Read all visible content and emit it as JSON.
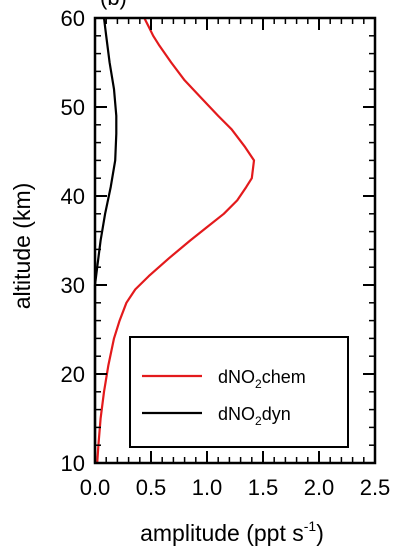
{
  "chart_data": {
    "type": "line",
    "title": "",
    "title_fragment": "(b)",
    "xlabel": "amplitude (ppt s",
    "xlabel_sup": "-1",
    "xlabel_close": ")",
    "ylabel": "altitude (km)",
    "xlim": [
      0.0,
      2.5
    ],
    "ylim": [
      10,
      60
    ],
    "x_ticks": [
      "0.0",
      "0.5",
      "1.0",
      "1.5",
      "2.0",
      "2.5"
    ],
    "x_tick_values": [
      0.0,
      0.5,
      1.0,
      1.5,
      2.0,
      2.5
    ],
    "y_ticks": [
      "10",
      "20",
      "30",
      "40",
      "50",
      "60"
    ],
    "y_tick_values": [
      10,
      20,
      30,
      40,
      50,
      60
    ],
    "grid": false,
    "legend_position": "bottom-right",
    "series": [
      {
        "name": "dNO2chem",
        "legend_base": "dNO",
        "legend_sub": "2",
        "legend_suffix": "chem",
        "color": "#e31a1c",
        "points": [
          [
            0.02,
            10
          ],
          [
            0.03,
            12
          ],
          [
            0.05,
            15
          ],
          [
            0.08,
            18
          ],
          [
            0.12,
            21
          ],
          [
            0.17,
            24
          ],
          [
            0.22,
            26
          ],
          [
            0.28,
            28
          ],
          [
            0.36,
            29.5
          ],
          [
            0.48,
            31
          ],
          [
            0.66,
            33
          ],
          [
            0.85,
            35
          ],
          [
            1.0,
            36.5
          ],
          [
            1.15,
            38
          ],
          [
            1.27,
            39.5
          ],
          [
            1.35,
            41
          ],
          [
            1.4,
            42
          ],
          [
            1.42,
            44
          ],
          [
            1.34,
            45.5
          ],
          [
            1.22,
            47.5
          ],
          [
            1.1,
            49
          ],
          [
            0.95,
            51
          ],
          [
            0.8,
            53
          ],
          [
            0.68,
            55
          ],
          [
            0.57,
            57
          ],
          [
            0.52,
            58
          ],
          [
            0.48,
            59
          ],
          [
            0.44,
            60
          ]
        ]
      },
      {
        "name": "dNO2dyn",
        "legend_base": "dNO",
        "legend_sub": "2",
        "legend_suffix": "dyn",
        "color": "#000000",
        "points": [
          [
            0.0,
            10
          ],
          [
            0.0,
            20
          ],
          [
            0.0,
            28
          ],
          [
            0.0,
            30
          ],
          [
            0.02,
            32
          ],
          [
            0.05,
            35
          ],
          [
            0.09,
            38
          ],
          [
            0.14,
            41
          ],
          [
            0.18,
            44
          ],
          [
            0.19,
            47
          ],
          [
            0.19,
            49
          ],
          [
            0.17,
            52
          ],
          [
            0.13,
            55
          ],
          [
            0.1,
            58
          ],
          [
            0.08,
            60
          ]
        ]
      }
    ]
  }
}
